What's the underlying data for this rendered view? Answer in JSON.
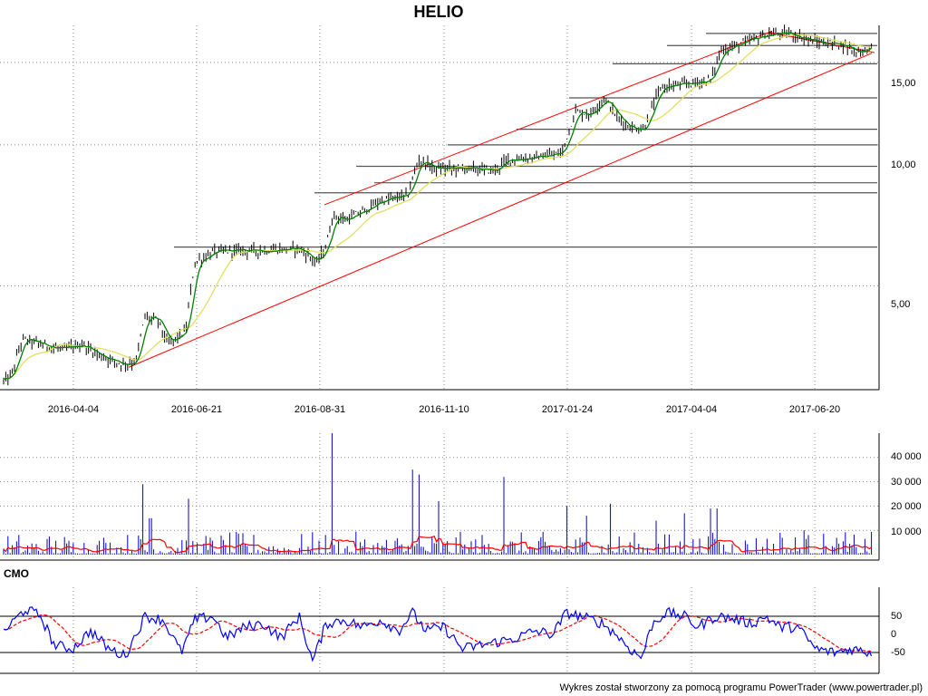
{
  "chart_data": [
    {
      "type": "line",
      "title": "HELIO",
      "x_ticks": [
        "2016-04-04",
        "2016-06-21",
        "2016-08-31",
        "2016-11-10",
        "2017-01-24",
        "2017-04-04",
        "2017-06-20"
      ],
      "y_ticks": [
        "15,00",
        "10,00",
        "5,00"
      ],
      "y_scale": "log",
      "ylim": [
        3.0,
        18.0
      ],
      "grid": true,
      "price_anchors": [
        [
          0,
          3.1
        ],
        [
          12,
          3.2
        ],
        [
          25,
          3.85
        ],
        [
          45,
          3.75
        ],
        [
          70,
          3.65
        ],
        [
          90,
          3.75
        ],
        [
          110,
          3.55
        ],
        [
          135,
          3.4
        ],
        [
          150,
          3.45
        ],
        [
          160,
          4.3
        ],
        [
          175,
          4.2
        ],
        [
          185,
          3.75
        ],
        [
          205,
          4.0
        ],
        [
          215,
          5.6
        ],
        [
          235,
          5.9
        ],
        [
          260,
          5.95
        ],
        [
          290,
          5.95
        ],
        [
          330,
          6.0
        ],
        [
          350,
          5.6
        ],
        [
          360,
          6.1
        ],
        [
          368,
          7.1
        ],
        [
          380,
          6.9
        ],
        [
          400,
          7.2
        ],
        [
          420,
          7.6
        ],
        [
          450,
          7.8
        ],
        [
          462,
          9.3
        ],
        [
          480,
          8.9
        ],
        [
          520,
          8.9
        ],
        [
          545,
          8.8
        ],
        [
          560,
          9.3
        ],
        [
          590,
          9.4
        ],
        [
          620,
          9.6
        ],
        [
          635,
          11.8
        ],
        [
          650,
          11.6
        ],
        [
          667,
          12.6
        ],
        [
          680,
          11.5
        ],
        [
          695,
          10.9
        ],
        [
          710,
          10.8
        ],
        [
          715,
          11.5
        ],
        [
          730,
          13.3
        ],
        [
          760,
          13.5
        ],
        [
          785,
          13.8
        ],
        [
          795,
          15.9
        ],
        [
          820,
          16.5
        ],
        [
          845,
          17.2
        ],
        [
          870,
          17.3
        ],
        [
          900,
          16.6
        ],
        [
          930,
          16.4
        ],
        [
          945,
          15.8
        ],
        [
          962,
          16.1
        ]
      ],
      "short_ma_lag": 4,
      "long_ma_lag": 20,
      "series": [
        {
          "color": "#008000"
        },
        {
          "color": "#e0e060"
        }
      ],
      "channel_lines": [
        {
          "from": [
            142,
            3.35
          ],
          "to": [
            962,
            15.7
          ]
        },
        {
          "from": [
            358,
            7.45
          ],
          "to": [
            852,
            17.5
          ]
        },
        {
          "from": [
            848,
            17.4
          ],
          "to": [
            965,
            15.75
          ]
        }
      ],
      "levels": [
        {
          "from": 779,
          "to": 968,
          "y": 17.3
        },
        {
          "from": 736,
          "to": 968,
          "y": 16.3
        },
        {
          "from": 676,
          "to": 968,
          "y": 14.9
        },
        {
          "from": 628,
          "to": 968,
          "y": 12.6
        },
        {
          "from": 570,
          "to": 968,
          "y": 10.8
        },
        {
          "from": 494,
          "to": 968,
          "y": 10.0
        },
        {
          "from": 393,
          "to": 968,
          "y": 9.0
        },
        {
          "from": 413,
          "to": 968,
          "y": 8.3
        },
        {
          "from": 347,
          "to": 968,
          "y": 7.9
        },
        {
          "from": 192,
          "to": 968,
          "y": 6.05
        }
      ]
    },
    {
      "type": "bar",
      "y_ticks": [
        "40 000",
        "30 000",
        "20 000",
        "10 000"
      ],
      "ylim": [
        0,
        50000
      ],
      "grid": true,
      "spikes": [
        [
          157,
          29000
        ],
        [
          166,
          15000
        ],
        [
          209,
          23000
        ],
        [
          366,
          50000
        ],
        [
          456,
          35000
        ],
        [
          463,
          33000
        ],
        [
          484,
          22000
        ],
        [
          555,
          32000
        ],
        [
          626,
          20000
        ],
        [
          648,
          16000
        ],
        [
          673,
          21000
        ],
        [
          724,
          14000
        ],
        [
          756,
          17000
        ],
        [
          785,
          19000
        ],
        [
          791,
          19000
        ],
        [
          860,
          9000
        ],
        [
          888,
          10000
        ]
      ],
      "series": [
        {
          "color": "#0000cc"
        },
        {
          "color": "#ff0000"
        }
      ]
    },
    {
      "type": "line",
      "title": "CMO",
      "y_ticks": [
        "50",
        "0",
        "-50"
      ],
      "ylim": [
        -85,
        85
      ],
      "grid": true,
      "reference_lines": [
        50,
        -50
      ],
      "cmo_anchors": [
        [
          5,
          10
        ],
        [
          28,
          70
        ],
        [
          45,
          50
        ],
        [
          60,
          -30
        ],
        [
          80,
          -40
        ],
        [
          100,
          10
        ],
        [
          120,
          -40
        ],
        [
          138,
          -60
        ],
        [
          160,
          50
        ],
        [
          180,
          40
        ],
        [
          200,
          -50
        ],
        [
          215,
          40
        ],
        [
          235,
          50
        ],
        [
          250,
          -10
        ],
        [
          270,
          20
        ],
        [
          290,
          30
        ],
        [
          310,
          -10
        ],
        [
          330,
          50
        ],
        [
          345,
          -75
        ],
        [
          360,
          30
        ],
        [
          380,
          40
        ],
        [
          400,
          20
        ],
        [
          420,
          40
        ],
        [
          440,
          10
        ],
        [
          455,
          60
        ],
        [
          470,
          10
        ],
        [
          490,
          20
        ],
        [
          510,
          -40
        ],
        [
          530,
          -30
        ],
        [
          550,
          -20
        ],
        [
          570,
          -10
        ],
        [
          590,
          10
        ],
        [
          610,
          0
        ],
        [
          625,
          60
        ],
        [
          640,
          50
        ],
        [
          665,
          30
        ],
        [
          680,
          0
        ],
        [
          695,
          -40
        ],
        [
          708,
          -65
        ],
        [
          720,
          30
        ],
        [
          735,
          60
        ],
        [
          755,
          50
        ],
        [
          770,
          20
        ],
        [
          790,
          50
        ],
        [
          805,
          45
        ],
        [
          830,
          30
        ],
        [
          845,
          50
        ],
        [
          860,
          20
        ],
        [
          880,
          20
        ],
        [
          900,
          -40
        ],
        [
          920,
          -50
        ],
        [
          940,
          -40
        ],
        [
          962,
          -50
        ]
      ],
      "signal_lag": 15,
      "series": [
        {
          "color": "#0000ff"
        },
        {
          "color": "#ff0000"
        }
      ]
    }
  ],
  "footer_text": "Wykres został stworzony za pomocą programu PowerTrader (www.powertrader.pl)"
}
